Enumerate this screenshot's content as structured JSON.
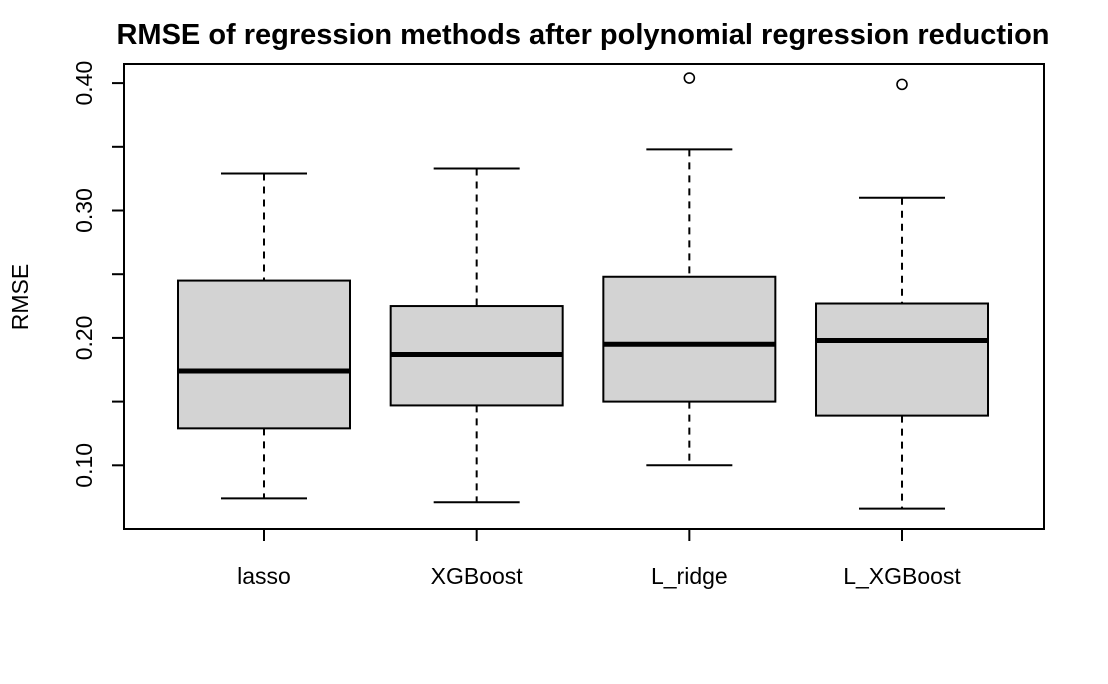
{
  "chart_data": {
    "type": "boxplot",
    "title": "RMSE of regression methods after polynomial regression reduction",
    "xlabel": "",
    "ylabel": "RMSE",
    "ylim": [
      0.05,
      0.415
    ],
    "yticks": [
      0.1,
      0.2,
      0.3,
      0.4
    ],
    "ytick_labels": [
      "0.10",
      "0.20",
      "0.30",
      "0.40"
    ],
    "grid": false,
    "box_color": "#d3d3d3",
    "categories": [
      "lasso",
      "XGBoost",
      "L_ridge",
      "L_XGBoost"
    ],
    "boxes": [
      {
        "name": "lasso",
        "whisker_low": 0.074,
        "q1": 0.129,
        "median": 0.174,
        "q3": 0.245,
        "whisker_high": 0.329,
        "outliers": []
      },
      {
        "name": "XGBoost",
        "whisker_low": 0.071,
        "q1": 0.147,
        "median": 0.187,
        "q3": 0.225,
        "whisker_high": 0.333,
        "outliers": []
      },
      {
        "name": "L_ridge",
        "whisker_low": 0.1,
        "q1": 0.15,
        "median": 0.195,
        "q3": 0.248,
        "whisker_high": 0.348,
        "outliers": [
          0.404
        ]
      },
      {
        "name": "L_XGBoost",
        "whisker_low": 0.066,
        "q1": 0.139,
        "median": 0.198,
        "q3": 0.227,
        "whisker_high": 0.31,
        "outliers": [
          0.399
        ]
      }
    ]
  }
}
